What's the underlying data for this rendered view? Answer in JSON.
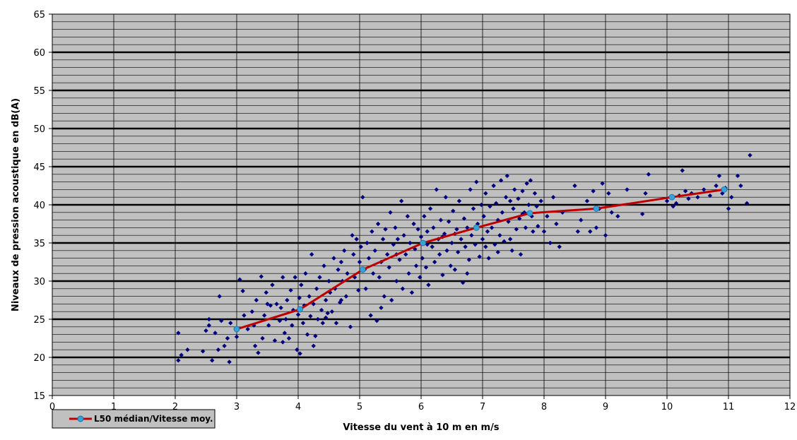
{
  "chart_data": {
    "type": "scatter",
    "title": "",
    "xlabel": "Vitesse du vent  à 10 m en m/s",
    "ylabel": "Niveaux de pression acoustique en dB(A)",
    "xlim": [
      0,
      12
    ],
    "ylim": [
      15,
      65
    ],
    "x_ticks": [
      "0",
      "1",
      "2",
      "3",
      "4",
      "5",
      "6",
      "7",
      "8",
      "9",
      "10",
      "11",
      "12"
    ],
    "y_ticks": [
      "15",
      "20",
      "25",
      "30",
      "35",
      "40",
      "45",
      "50",
      "55",
      "60",
      "65"
    ],
    "grid": true,
    "legend_position": "bottom-left",
    "colors": {
      "plot_background": "#c0c0c0",
      "scatter": "#000080",
      "median_line": "#c00000",
      "median_marker": "#33a3d9"
    },
    "series": [
      {
        "type": "scatter",
        "marker": "diamond",
        "points": [
          [
            2.05,
            19.6
          ],
          [
            2.05,
            23.2
          ],
          [
            2.1,
            20.3
          ],
          [
            2.2,
            21.0
          ],
          [
            2.45,
            20.8
          ],
          [
            2.5,
            23.5
          ],
          [
            2.55,
            24.2
          ],
          [
            2.55,
            25.0
          ],
          [
            2.6,
            19.6
          ],
          [
            2.65,
            23.2
          ],
          [
            2.7,
            21.0
          ],
          [
            2.72,
            28.0
          ],
          [
            2.75,
            24.8
          ],
          [
            2.8,
            21.5
          ],
          [
            2.85,
            22.5
          ],
          [
            2.88,
            19.4
          ],
          [
            2.9,
            24.5
          ],
          [
            3.0,
            22.7
          ],
          [
            3.05,
            30.2
          ],
          [
            3.1,
            28.7
          ],
          [
            3.12,
            25.5
          ],
          [
            3.18,
            23.7
          ],
          [
            3.25,
            26.0
          ],
          [
            3.28,
            24.2
          ],
          [
            3.32,
            27.5
          ],
          [
            3.35,
            20.6
          ],
          [
            3.4,
            30.6
          ],
          [
            3.42,
            22.5
          ],
          [
            3.45,
            25.5
          ],
          [
            3.48,
            28.5
          ],
          [
            3.52,
            24.2
          ],
          [
            3.55,
            26.8
          ],
          [
            3.58,
            29.5
          ],
          [
            3.62,
            22.2
          ],
          [
            3.65,
            27.0
          ],
          [
            3.7,
            24.8
          ],
          [
            3.72,
            26.5
          ],
          [
            3.75,
            30.5
          ],
          [
            3.78,
            23.2
          ],
          [
            3.8,
            25.0
          ],
          [
            3.82,
            27.5
          ],
          [
            3.85,
            22.5
          ],
          [
            3.88,
            28.8
          ],
          [
            3.9,
            24.2
          ],
          [
            3.92,
            26.2
          ],
          [
            3.95,
            30.5
          ],
          [
            3.98,
            21.0
          ],
          [
            4.0,
            25.6
          ],
          [
            4.02,
            27.8
          ],
          [
            4.03,
            20.5
          ],
          [
            4.05,
            29.5
          ],
          [
            4.08,
            24.5
          ],
          [
            4.1,
            26.8
          ],
          [
            4.12,
            31.0
          ],
          [
            4.15,
            23.0
          ],
          [
            4.18,
            28.0
          ],
          [
            4.2,
            25.4
          ],
          [
            4.22,
            33.5
          ],
          [
            4.25,
            27.0
          ],
          [
            4.28,
            22.8
          ],
          [
            4.3,
            29.0
          ],
          [
            4.32,
            25.0
          ],
          [
            4.35,
            30.5
          ],
          [
            4.38,
            26.2
          ],
          [
            4.4,
            24.5
          ],
          [
            4.42,
            32.0
          ],
          [
            4.45,
            27.5
          ],
          [
            4.48,
            25.8
          ],
          [
            4.5,
            30.0
          ],
          [
            4.52,
            28.5
          ],
          [
            4.55,
            26.0
          ],
          [
            4.58,
            33.0
          ],
          [
            4.6,
            29.0
          ],
          [
            4.62,
            24.5
          ],
          [
            4.65,
            31.5
          ],
          [
            4.68,
            27.2
          ],
          [
            4.7,
            32.5
          ],
          [
            4.72,
            30.0
          ],
          [
            4.75,
            34.0
          ],
          [
            4.78,
            28.0
          ],
          [
            4.8,
            31.0
          ],
          [
            4.85,
            24.0
          ],
          [
            4.88,
            36.0
          ],
          [
            4.9,
            33.5
          ],
          [
            4.92,
            30.5
          ],
          [
            4.95,
            35.5
          ],
          [
            4.98,
            28.8
          ],
          [
            5.0,
            32.5
          ],
          [
            5.02,
            34.5
          ],
          [
            5.05,
            41.0
          ],
          [
            5.08,
            31.5
          ],
          [
            5.1,
            29.0
          ],
          [
            5.12,
            35.0
          ],
          [
            5.15,
            33.0
          ],
          [
            5.18,
            25.5
          ],
          [
            5.2,
            36.5
          ],
          [
            5.22,
            31.0
          ],
          [
            5.25,
            34.0
          ],
          [
            5.28,
            24.8
          ],
          [
            5.3,
            37.5
          ],
          [
            5.32,
            30.5
          ],
          [
            5.35,
            32.5
          ],
          [
            5.38,
            35.5
          ],
          [
            5.4,
            28.0
          ],
          [
            5.42,
            36.8
          ],
          [
            5.45,
            33.5
          ],
          [
            5.48,
            31.8
          ],
          [
            5.5,
            39.0
          ],
          [
            5.52,
            27.5
          ],
          [
            5.55,
            34.8
          ],
          [
            5.58,
            37.0
          ],
          [
            5.6,
            30.0
          ],
          [
            5.62,
            35.5
          ],
          [
            5.65,
            32.8
          ],
          [
            5.68,
            40.5
          ],
          [
            5.7,
            29.0
          ],
          [
            5.72,
            36.0
          ],
          [
            5.75,
            33.5
          ],
          [
            5.78,
            38.5
          ],
          [
            5.8,
            31.0
          ],
          [
            5.82,
            35.0
          ],
          [
            5.85,
            28.5
          ],
          [
            5.88,
            37.5
          ],
          [
            5.9,
            34.2
          ],
          [
            5.92,
            32.0
          ],
          [
            5.95,
            36.8
          ],
          [
            5.98,
            30.5
          ],
          [
            6.0,
            35.8
          ],
          [
            6.02,
            33.0
          ],
          [
            6.05,
            38.5
          ],
          [
            6.08,
            31.8
          ],
          [
            6.1,
            36.5
          ],
          [
            6.12,
            29.5
          ],
          [
            6.15,
            39.5
          ],
          [
            6.18,
            34.5
          ],
          [
            6.2,
            37.0
          ],
          [
            6.22,
            32.5
          ],
          [
            6.25,
            42.0
          ],
          [
            6.28,
            35.5
          ],
          [
            6.3,
            33.5
          ],
          [
            6.32,
            38.0
          ],
          [
            6.35,
            30.8
          ],
          [
            6.38,
            36.2
          ],
          [
            6.4,
            41.0
          ],
          [
            6.42,
            34.0
          ],
          [
            6.45,
            37.8
          ],
          [
            6.48,
            32.0
          ],
          [
            6.5,
            35.0
          ],
          [
            6.52,
            39.2
          ],
          [
            6.55,
            31.5
          ],
          [
            6.58,
            36.8
          ],
          [
            6.6,
            33.8
          ],
          [
            6.62,
            40.5
          ],
          [
            6.65,
            35.5
          ],
          [
            6.68,
            29.8
          ],
          [
            6.7,
            38.2
          ],
          [
            6.72,
            34.5
          ],
          [
            6.75,
            37.0
          ],
          [
            6.78,
            32.8
          ],
          [
            6.8,
            42.0
          ],
          [
            6.82,
            36.0
          ],
          [
            6.85,
            39.5
          ],
          [
            6.88,
            34.8
          ],
          [
            6.9,
            43.0
          ],
          [
            6.92,
            37.5
          ],
          [
            6.95,
            33.2
          ],
          [
            6.98,
            40.0
          ],
          [
            7.0,
            35.5
          ],
          [
            7.02,
            38.5
          ],
          [
            7.05,
            41.5
          ],
          [
            7.08,
            36.5
          ],
          [
            7.1,
            33.0
          ],
          [
            7.12,
            39.8
          ],
          [
            7.15,
            37.0
          ],
          [
            7.18,
            42.5
          ],
          [
            7.2,
            34.8
          ],
          [
            7.22,
            40.2
          ],
          [
            7.25,
            38.0
          ],
          [
            7.28,
            36.0
          ],
          [
            7.3,
            43.2
          ],
          [
            7.32,
            39.0
          ],
          [
            7.35,
            35.2
          ],
          [
            7.38,
            41.0
          ],
          [
            7.4,
            43.8
          ],
          [
            7.42,
            37.8
          ],
          [
            7.45,
            40.5
          ],
          [
            7.48,
            34.0
          ],
          [
            7.5,
            39.5
          ],
          [
            7.52,
            42.0
          ],
          [
            7.55,
            36.8
          ],
          [
            7.58,
            40.8
          ],
          [
            7.6,
            38.2
          ],
          [
            7.62,
            33.5
          ],
          [
            7.65,
            41.8
          ],
          [
            7.68,
            39.0
          ],
          [
            7.7,
            37.0
          ],
          [
            7.72,
            42.8
          ],
          [
            7.75,
            40.0
          ],
          [
            7.78,
            43.2
          ],
          [
            7.8,
            38.5
          ],
          [
            7.82,
            36.5
          ],
          [
            7.85,
            41.5
          ],
          [
            7.88,
            39.8
          ],
          [
            7.9,
            37.2
          ],
          [
            7.95,
            40.5
          ],
          [
            8.0,
            36.5
          ],
          [
            8.05,
            38.5
          ],
          [
            8.1,
            35.0
          ],
          [
            8.15,
            41.0
          ],
          [
            8.2,
            37.5
          ],
          [
            8.25,
            34.5
          ],
          [
            8.3,
            39.0
          ],
          [
            8.5,
            42.5
          ],
          [
            8.55,
            36.5
          ],
          [
            8.6,
            38.0
          ],
          [
            8.7,
            40.5
          ],
          [
            8.75,
            36.5
          ],
          [
            8.8,
            41.8
          ],
          [
            8.85,
            37.0
          ],
          [
            8.9,
            39.5
          ],
          [
            8.95,
            42.8
          ],
          [
            9.0,
            36.0
          ],
          [
            9.05,
            41.5
          ],
          [
            9.1,
            39.0
          ],
          [
            9.2,
            38.5
          ],
          [
            9.35,
            42.0
          ],
          [
            9.6,
            38.8
          ],
          [
            9.65,
            41.5
          ],
          [
            9.7,
            44.0
          ],
          [
            10.0,
            40.5
          ],
          [
            10.05,
            41.0
          ],
          [
            10.1,
            39.8
          ],
          [
            10.15,
            40.2
          ],
          [
            10.2,
            41.2
          ],
          [
            10.25,
            44.5
          ],
          [
            10.3,
            41.8
          ],
          [
            10.35,
            40.8
          ],
          [
            10.4,
            41.5
          ],
          [
            10.5,
            41.0
          ],
          [
            10.6,
            42.0
          ],
          [
            10.7,
            41.2
          ],
          [
            10.8,
            42.5
          ],
          [
            10.85,
            43.8
          ],
          [
            10.9,
            41.5
          ],
          [
            10.95,
            42.2
          ],
          [
            11.0,
            39.5
          ],
          [
            11.05,
            41.0
          ],
          [
            11.15,
            43.8
          ],
          [
            11.2,
            42.5
          ],
          [
            11.3,
            40.2
          ],
          [
            11.35,
            46.5
          ],
          [
            3.3,
            21.5
          ],
          [
            3.5,
            27.0
          ],
          [
            3.75,
            22.0
          ],
          [
            4.25,
            21.5
          ],
          [
            4.45,
            25.2
          ],
          [
            4.7,
            27.5
          ],
          [
            5.35,
            26.5
          ],
          [
            5.6,
            33.5
          ],
          [
            6.1,
            34.8
          ],
          [
            6.35,
            35.8
          ],
          [
            6.55,
            36.2
          ],
          [
            6.75,
            31.0
          ],
          [
            7.05,
            34.5
          ],
          [
            7.25,
            33.8
          ],
          [
            7.45,
            35.5
          ],
          [
            7.65,
            38.8
          ]
        ]
      },
      {
        "name": "L50 médian/Vitesse moy.",
        "type": "line",
        "points": [
          [
            3.0,
            23.7
          ],
          [
            4.03,
            26.3
          ],
          [
            5.05,
            31.5
          ],
          [
            6.03,
            35.0
          ],
          [
            6.9,
            37.0
          ],
          [
            7.77,
            38.9
          ],
          [
            8.85,
            39.5
          ],
          [
            10.08,
            41.0
          ],
          [
            10.93,
            42.0
          ]
        ]
      }
    ]
  }
}
